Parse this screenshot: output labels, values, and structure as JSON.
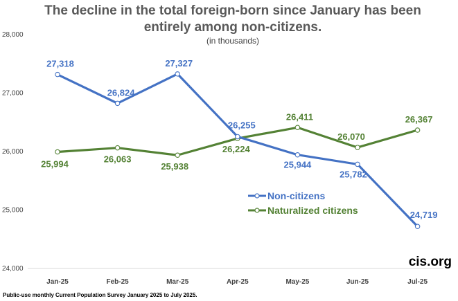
{
  "chart_data": {
    "type": "line",
    "title_lines": [
      "The decline in the total foreign-born since January has been",
      "entirely among non-citizens."
    ],
    "subtitle": "(in thousands)",
    "categories": [
      "Jan-25",
      "Feb-25",
      "Mar-25",
      "Apr-25",
      "May-25",
      "Jun-25",
      "Jul-25"
    ],
    "series": [
      {
        "name": "Non-citizens",
        "color": "#4472C4",
        "values": [
          27318,
          26824,
          27327,
          26255,
          25944,
          25782,
          24719
        ],
        "labels": [
          "27,318",
          "26,824",
          "27,327",
          "26,255",
          "25,944",
          "25,782",
          "24,719"
        ]
      },
      {
        "name": "Naturalized citizens",
        "color": "#548235",
        "values": [
          25994,
          26063,
          25938,
          26224,
          26411,
          26070,
          26367
        ],
        "labels": [
          "25,994",
          "26,063",
          "25,938",
          "26,224",
          "26,411",
          "26,070",
          "26,367"
        ]
      }
    ],
    "ylim": [
      24000,
      28000
    ],
    "yticks": [
      24000,
      25000,
      26000,
      27000,
      28000
    ],
    "ytick_labels": [
      "24,000",
      "25,000",
      "26,000",
      "27,000",
      "28,000"
    ],
    "xlabel": "",
    "ylabel": "",
    "grid": false,
    "legend_position": "center-right",
    "brand": "cis.org",
    "source_note": "Public-use monthly Current Population Survey January 2025 to July 2025."
  }
}
